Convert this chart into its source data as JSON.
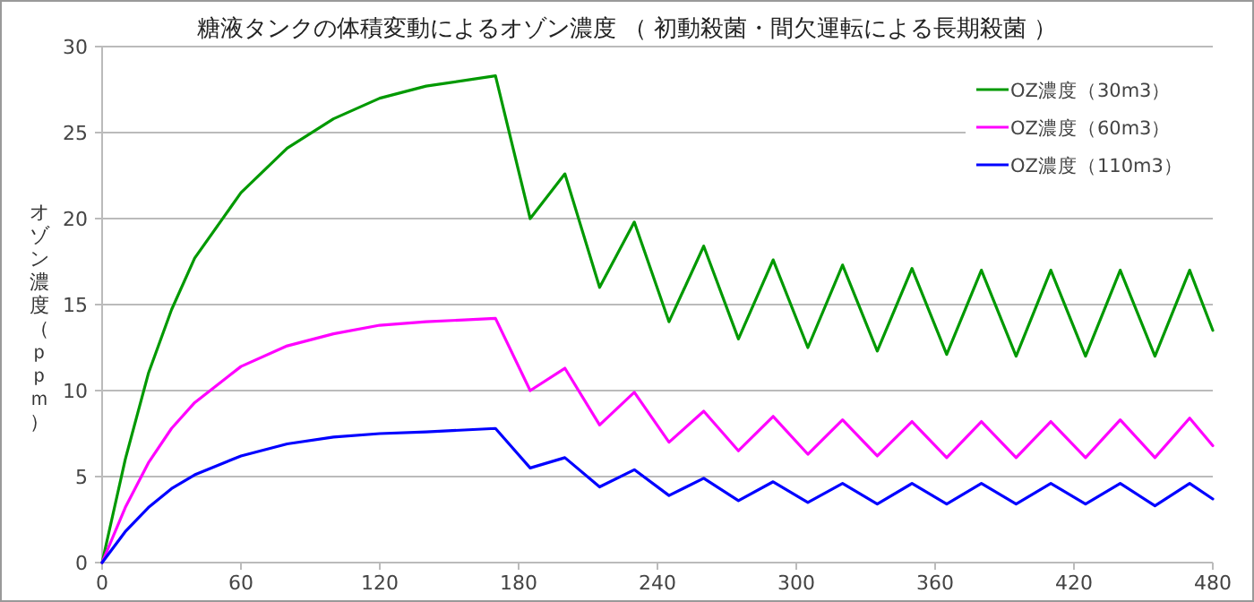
{
  "chart_data": {
    "type": "line",
    "title": "糖液タンクの体積変動によるオゾン濃度 （ 初動殺菌・間欠運転による長期殺菌 ）",
    "ylabel": "オゾン濃度（ｐｐｍ）",
    "xlim": [
      0,
      480
    ],
    "xticks": [
      0,
      60,
      120,
      180,
      240,
      300,
      360,
      420,
      480
    ],
    "ylim": [
      0,
      30
    ],
    "yticks": [
      0,
      5,
      10,
      15,
      20,
      25,
      30
    ],
    "grid": "y",
    "legend": "top right",
    "marker": "none",
    "line_style": "solid",
    "x": [
      0,
      10,
      20,
      30,
      40,
      60,
      80,
      100,
      120,
      140,
      170,
      185,
      200,
      215,
      230,
      245,
      260,
      275,
      290,
      305,
      320,
      335,
      350,
      365,
      380,
      395,
      410,
      425,
      440,
      455,
      470,
      480
    ],
    "series": [
      {
        "name": "OZ濃度（30m3）",
        "color": "#009900",
        "values": [
          0,
          6,
          11,
          14.7,
          17.7,
          21.5,
          24.1,
          25.8,
          27,
          27.7,
          28.3,
          20,
          22.6,
          16,
          19.8,
          14,
          18.4,
          13,
          17.6,
          12.5,
          17.3,
          12.3,
          17.1,
          12.1,
          17,
          12,
          17,
          12,
          17,
          12,
          17,
          13.5
        ]
      },
      {
        "name": "OZ濃度（60m3）",
        "color": "#ff00ff",
        "values": [
          0,
          3.2,
          5.8,
          7.8,
          9.3,
          11.4,
          12.6,
          13.3,
          13.8,
          14,
          14.2,
          10,
          11.3,
          8,
          9.9,
          7,
          8.8,
          6.5,
          8.5,
          6.3,
          8.3,
          6.2,
          8.2,
          6.1,
          8.2,
          6.1,
          8.2,
          6.1,
          8.3,
          6.1,
          8.4,
          6.8
        ]
      },
      {
        "name": "OZ濃度（110m3）",
        "color": "#0000ff",
        "values": [
          0,
          1.8,
          3.2,
          4.3,
          5.1,
          6.2,
          6.9,
          7.3,
          7.5,
          7.6,
          7.8,
          5.5,
          6.1,
          4.4,
          5.4,
          3.9,
          4.9,
          3.6,
          4.7,
          3.5,
          4.6,
          3.4,
          4.6,
          3.4,
          4.6,
          3.4,
          4.6,
          3.4,
          4.6,
          3.3,
          4.6,
          3.7
        ]
      }
    ]
  }
}
